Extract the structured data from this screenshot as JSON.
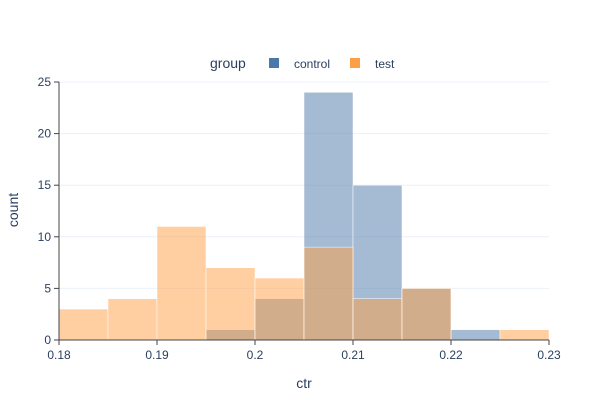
{
  "chart_data": {
    "type": "bar",
    "barmode": "overlay",
    "title": "",
    "xlabel": "ctr",
    "ylabel": "count",
    "xlim": [
      0.18,
      0.23
    ],
    "ylim": [
      0,
      25
    ],
    "bin_width": 0.005,
    "x_ticks": [
      0.18,
      0.19,
      0.2,
      0.21,
      0.22,
      0.23
    ],
    "x_tick_labels": [
      "0.18",
      "0.19",
      "0.2",
      "0.21",
      "0.22",
      "0.23"
    ],
    "y_ticks": [
      0,
      5,
      10,
      15,
      20,
      25
    ],
    "y_tick_labels": [
      "0",
      "5",
      "10",
      "15",
      "20",
      "25"
    ],
    "grid": true,
    "legend": {
      "title": "group",
      "placement": "top",
      "entries": [
        {
          "name": "control",
          "color": "#4c78a8"
        },
        {
          "name": "test",
          "color": "#ff9f45"
        }
      ]
    },
    "series": [
      {
        "name": "control",
        "color": "#4c78a8",
        "opacity": 0.5,
        "bin_starts": [
          0.195,
          0.2,
          0.205,
          0.21,
          0.215,
          0.22
        ],
        "values": [
          1,
          4,
          24,
          15,
          5,
          1
        ]
      },
      {
        "name": "test",
        "color": "#ff9f45",
        "opacity": 0.5,
        "bin_starts": [
          0.18,
          0.185,
          0.19,
          0.195,
          0.2,
          0.205,
          0.21,
          0.215,
          0.225
        ],
        "values": [
          3,
          4,
          11,
          7,
          6,
          9,
          4,
          5,
          1
        ]
      }
    ]
  }
}
